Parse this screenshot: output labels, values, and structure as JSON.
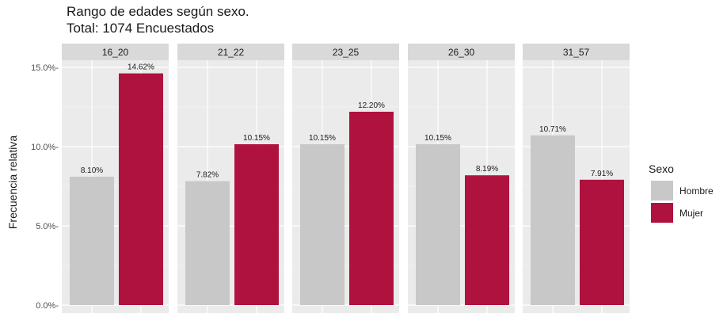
{
  "chart_data": {
    "type": "bar",
    "title": "Rango de edades según sexo.",
    "subtitle": "Total: 1074 Encuestados",
    "ylabel": "Frecuencia relativa",
    "xlabel": "",
    "ylim": [
      0,
      0.155
    ],
    "yticks": [
      0,
      0.05,
      0.1,
      0.15
    ],
    "ytick_labels": [
      "0.0%-",
      "5.0%-",
      "10.0%-",
      "15.0%-"
    ],
    "grid": true,
    "legend_position": "right",
    "legend_title": "Sexo",
    "facets": [
      "16_20",
      "21_22",
      "23_25",
      "26_30",
      "31_57"
    ],
    "series": [
      {
        "name": "Hombre",
        "color": "#c8c8c8",
        "values": [
          0.081,
          0.0782,
          0.1015,
          0.1015,
          0.1071
        ],
        "labels": [
          "8.10%",
          "7.82%",
          "10.15%",
          "10.15%",
          "10.71%"
        ]
      },
      {
        "name": "Mujer",
        "color": "#b0123f",
        "values": [
          0.1462,
          0.1015,
          0.122,
          0.0819,
          0.0791
        ],
        "labels": [
          "14.62%",
          "10.15%",
          "12.20%",
          "8.19%",
          "7.91%"
        ]
      }
    ]
  }
}
